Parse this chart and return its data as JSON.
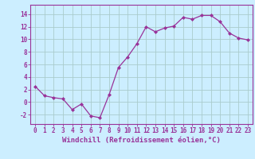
{
  "x": [
    0,
    1,
    2,
    3,
    4,
    5,
    6,
    7,
    8,
    9,
    10,
    11,
    12,
    13,
    14,
    15,
    16,
    17,
    18,
    19,
    20,
    21,
    22,
    23
  ],
  "y": [
    2.5,
    1.0,
    0.7,
    0.5,
    -1.2,
    -0.3,
    -2.2,
    -2.5,
    1.2,
    5.5,
    7.2,
    9.3,
    12.0,
    11.2,
    11.8,
    12.1,
    13.5,
    13.2,
    13.8,
    13.8,
    12.8,
    11.0,
    10.2,
    9.9
  ],
  "line_color": "#993399",
  "marker": "D",
  "marker_size": 2,
  "bg_color": "#cceeff",
  "grid_color": "#aacccc",
  "xlabel": "Windchill (Refroidissement éolien,°C)",
  "xlabel_color": "#993399",
  "ylabel_ticks": [
    -2,
    0,
    2,
    4,
    6,
    8,
    10,
    12,
    14
  ],
  "xlim": [
    -0.5,
    23.5
  ],
  "ylim": [
    -3.5,
    15.5
  ],
  "tick_color": "#993399",
  "spine_color": "#993399",
  "tick_fontsize": 5.5,
  "xlabel_fontsize": 6.5
}
